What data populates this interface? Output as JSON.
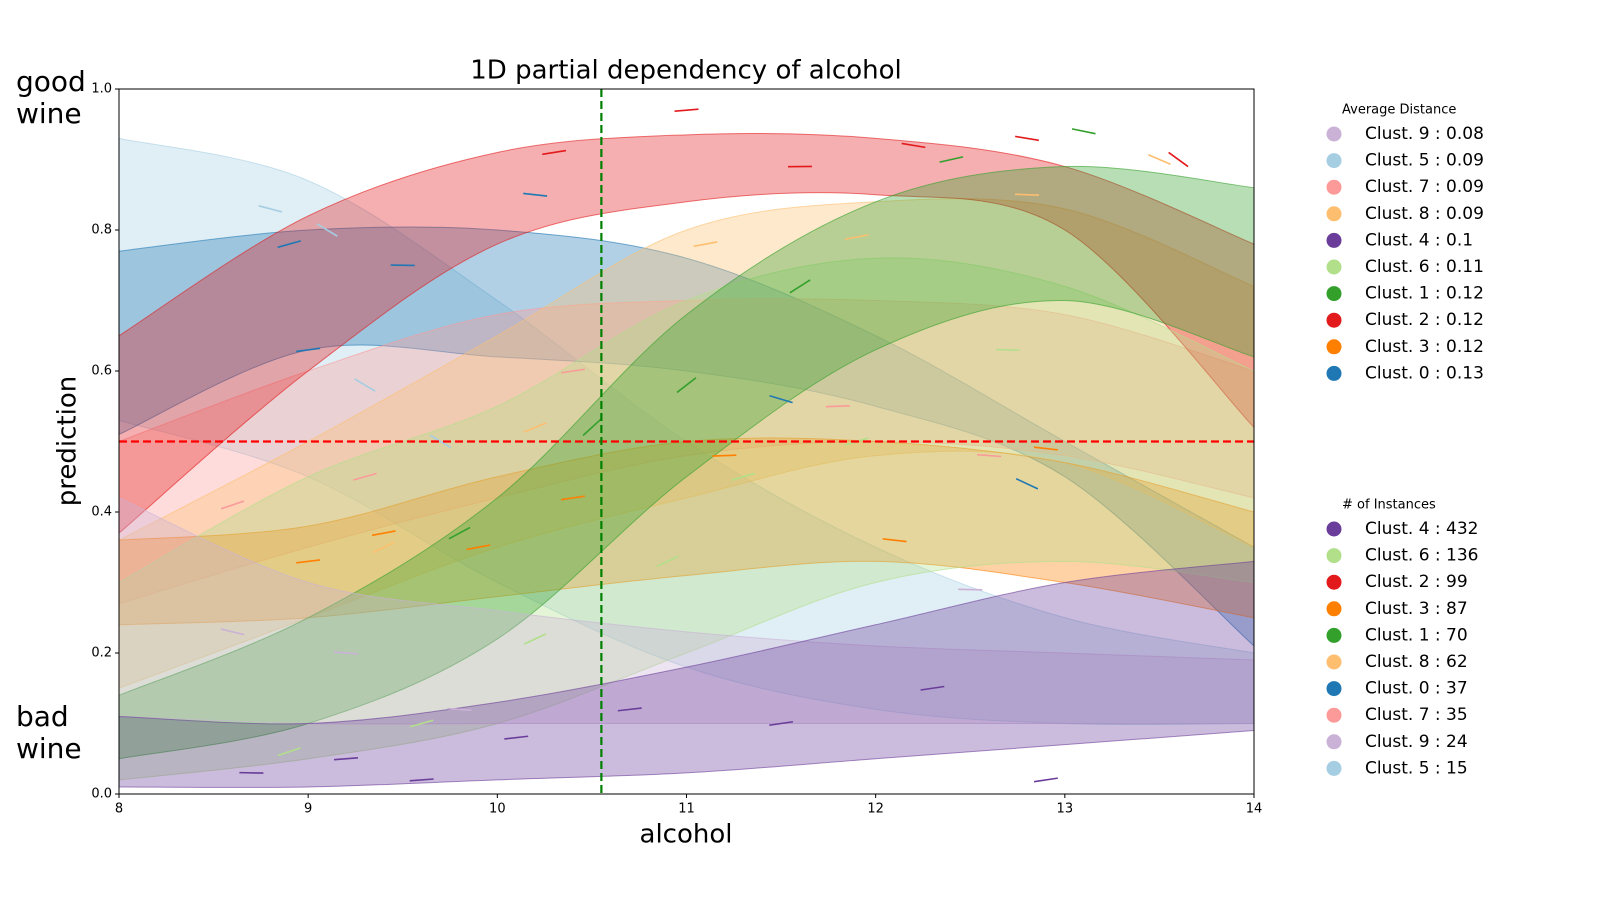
{
  "chart_data": {
    "type": "band",
    "title": "1D partial dependency of alcohol",
    "xlabel": "alcohol",
    "ylabel": "prediction",
    "annotations": [
      "good wine",
      "bad wine"
    ],
    "xlim": [
      8,
      14
    ],
    "ylim": [
      0,
      1
    ],
    "xticks": [
      8,
      9,
      10,
      11,
      12,
      13,
      14
    ],
    "yticks": [
      0.0,
      0.2,
      0.4,
      0.6,
      0.8,
      1.0
    ],
    "vline": {
      "value": 10.55,
      "color": "#008000"
    },
    "hline": {
      "value": 0.5,
      "color": "#ff0000"
    },
    "x": [
      8,
      9,
      10,
      11,
      12,
      13,
      14
    ],
    "series": [
      {
        "color": "#a6cee3",
        "upper": [
          0.93,
          0.87,
          0.7,
          0.5,
          0.35,
          0.25,
          0.2
        ],
        "lower": [
          0.53,
          0.45,
          0.3,
          0.18,
          0.12,
          0.1,
          0.1
        ],
        "points": {
          "x": [
            8.8,
            9.1,
            9.3,
            9.7
          ],
          "y": [
            0.83,
            0.8,
            0.58,
            0.5
          ]
        }
      },
      {
        "color": "#1f78b4",
        "upper": [
          0.77,
          0.8,
          0.8,
          0.76,
          0.65,
          0.5,
          0.35
        ],
        "lower": [
          0.51,
          0.63,
          0.62,
          0.6,
          0.55,
          0.45,
          0.21
        ],
        "points": {
          "x": [
            8.9,
            9.0,
            9.5,
            10.2,
            11.5,
            12.8
          ],
          "y": [
            0.78,
            0.63,
            0.75,
            0.85,
            0.56,
            0.44
          ]
        }
      },
      {
        "color": "#fb9a99",
        "upper": [
          0.5,
          0.6,
          0.68,
          0.7,
          0.7,
          0.68,
          0.6
        ],
        "lower": [
          0.27,
          0.35,
          0.42,
          0.48,
          0.5,
          0.48,
          0.42
        ],
        "points": {
          "x": [
            8.6,
            9.3,
            10.4,
            11.8,
            12.6
          ],
          "y": [
            0.41,
            0.45,
            0.6,
            0.55,
            0.48
          ]
        }
      },
      {
        "color": "#fdbf6f",
        "upper": [
          0.36,
          0.5,
          0.65,
          0.8,
          0.84,
          0.83,
          0.72
        ],
        "lower": [
          0.15,
          0.25,
          0.35,
          0.42,
          0.48,
          0.47,
          0.35
        ],
        "points": {
          "x": [
            9.4,
            10.2,
            11.1,
            11.9,
            12.8,
            13.5
          ],
          "y": [
            0.35,
            0.52,
            0.78,
            0.79,
            0.85,
            0.9
          ]
        }
      },
      {
        "color": "#e31a1c",
        "upper": [
          0.65,
          0.82,
          0.91,
          0.935,
          0.93,
          0.89,
          0.78
        ],
        "lower": [
          0.37,
          0.6,
          0.78,
          0.84,
          0.85,
          0.8,
          0.52
        ],
        "points": {
          "x": [
            10.3,
            11.0,
            11.6,
            12.2,
            12.8,
            13.6
          ],
          "y": [
            0.91,
            0.97,
            0.89,
            0.92,
            0.93,
            0.9
          ]
        }
      },
      {
        "color": "#ff7f00",
        "upper": [
          0.36,
          0.38,
          0.45,
          0.5,
          0.5,
          0.47,
          0.4
        ],
        "lower": [
          0.24,
          0.25,
          0.28,
          0.31,
          0.33,
          0.3,
          0.25
        ],
        "points": {
          "x": [
            9.0,
            9.4,
            9.9,
            10.4,
            11.2,
            12.1,
            12.9
          ],
          "y": [
            0.33,
            0.37,
            0.35,
            0.42,
            0.48,
            0.36,
            0.49
          ]
        }
      },
      {
        "color": "#b2df8a",
        "upper": [
          0.3,
          0.45,
          0.55,
          0.7,
          0.76,
          0.72,
          0.6
        ],
        "lower": [
          0.02,
          0.05,
          0.1,
          0.2,
          0.3,
          0.33,
          0.3
        ],
        "points": {
          "x": [
            8.9,
            9.6,
            10.2,
            10.9,
            11.3,
            11.9,
            12.7
          ],
          "y": [
            0.06,
            0.1,
            0.22,
            0.33,
            0.45,
            0.5,
            0.63
          ]
        }
      },
      {
        "color": "#33a02c",
        "upper": [
          0.14,
          0.25,
          0.42,
          0.68,
          0.84,
          0.89,
          0.86
        ],
        "lower": [
          0.05,
          0.1,
          0.22,
          0.45,
          0.63,
          0.7,
          0.62
        ],
        "points": {
          "x": [
            9.8,
            10.5,
            11.0,
            11.6,
            12.4,
            13.1
          ],
          "y": [
            0.37,
            0.52,
            0.58,
            0.72,
            0.9,
            0.94
          ]
        }
      },
      {
        "color": "#cab2d6",
        "upper": [
          0.42,
          0.3,
          0.26,
          0.23,
          0.21,
          0.2,
          0.19
        ],
        "lower": [
          0.11,
          0.1,
          0.1,
          0.1,
          0.1,
          0.1,
          0.1
        ],
        "points": {
          "x": [
            8.6,
            9.2,
            9.8,
            12.5
          ],
          "y": [
            0.23,
            0.2,
            0.12,
            0.29
          ]
        }
      },
      {
        "color": "#6a3d9a",
        "upper": [
          0.11,
          0.1,
          0.13,
          0.18,
          0.24,
          0.3,
          0.33
        ],
        "lower": [
          0.01,
          0.01,
          0.02,
          0.03,
          0.05,
          0.07,
          0.09
        ],
        "points": {
          "x": [
            8.7,
            9.2,
            9.6,
            10.1,
            10.7,
            11.5,
            12.3,
            12.9
          ],
          "y": [
            0.03,
            0.05,
            0.02,
            0.08,
            0.12,
            0.1,
            0.15,
            0.02
          ]
        }
      }
    ],
    "legends": [
      {
        "title": "Average Distance",
        "entries": [
          {
            "label": "Clust. 9 : 0.08",
            "color": "#cab2d6"
          },
          {
            "label": "Clust. 5 : 0.09",
            "color": "#a6cee3"
          },
          {
            "label": "Clust. 7 : 0.09",
            "color": "#fb9a99"
          },
          {
            "label": "Clust. 8 : 0.09",
            "color": "#fdbf6f"
          },
          {
            "label": "Clust. 4 : 0.1",
            "color": "#6a3d9a"
          },
          {
            "label": "Clust. 6 : 0.11",
            "color": "#b2df8a"
          },
          {
            "label": "Clust. 1 : 0.12",
            "color": "#33a02c"
          },
          {
            "label": "Clust. 2 : 0.12",
            "color": "#e31a1c"
          },
          {
            "label": "Clust. 3 : 0.12",
            "color": "#ff7f00"
          },
          {
            "label": "Clust. 0 : 0.13",
            "color": "#1f78b4"
          }
        ]
      },
      {
        "title": "# of Instances",
        "entries": [
          {
            "label": "Clust. 4 : 432",
            "color": "#6a3d9a"
          },
          {
            "label": "Clust. 6 : 136",
            "color": "#b2df8a"
          },
          {
            "label": "Clust. 2 : 99",
            "color": "#e31a1c"
          },
          {
            "label": "Clust. 3 : 87",
            "color": "#ff7f00"
          },
          {
            "label": "Clust. 1 : 70",
            "color": "#33a02c"
          },
          {
            "label": "Clust. 8 : 62",
            "color": "#fdbf6f"
          },
          {
            "label": "Clust. 0 : 37",
            "color": "#1f78b4"
          },
          {
            "label": "Clust. 7 : 35",
            "color": "#fb9a99"
          },
          {
            "label": "Clust. 9 : 24",
            "color": "#cab2d6"
          },
          {
            "label": "Clust. 5 : 15",
            "color": "#a6cee3"
          }
        ]
      }
    ]
  }
}
